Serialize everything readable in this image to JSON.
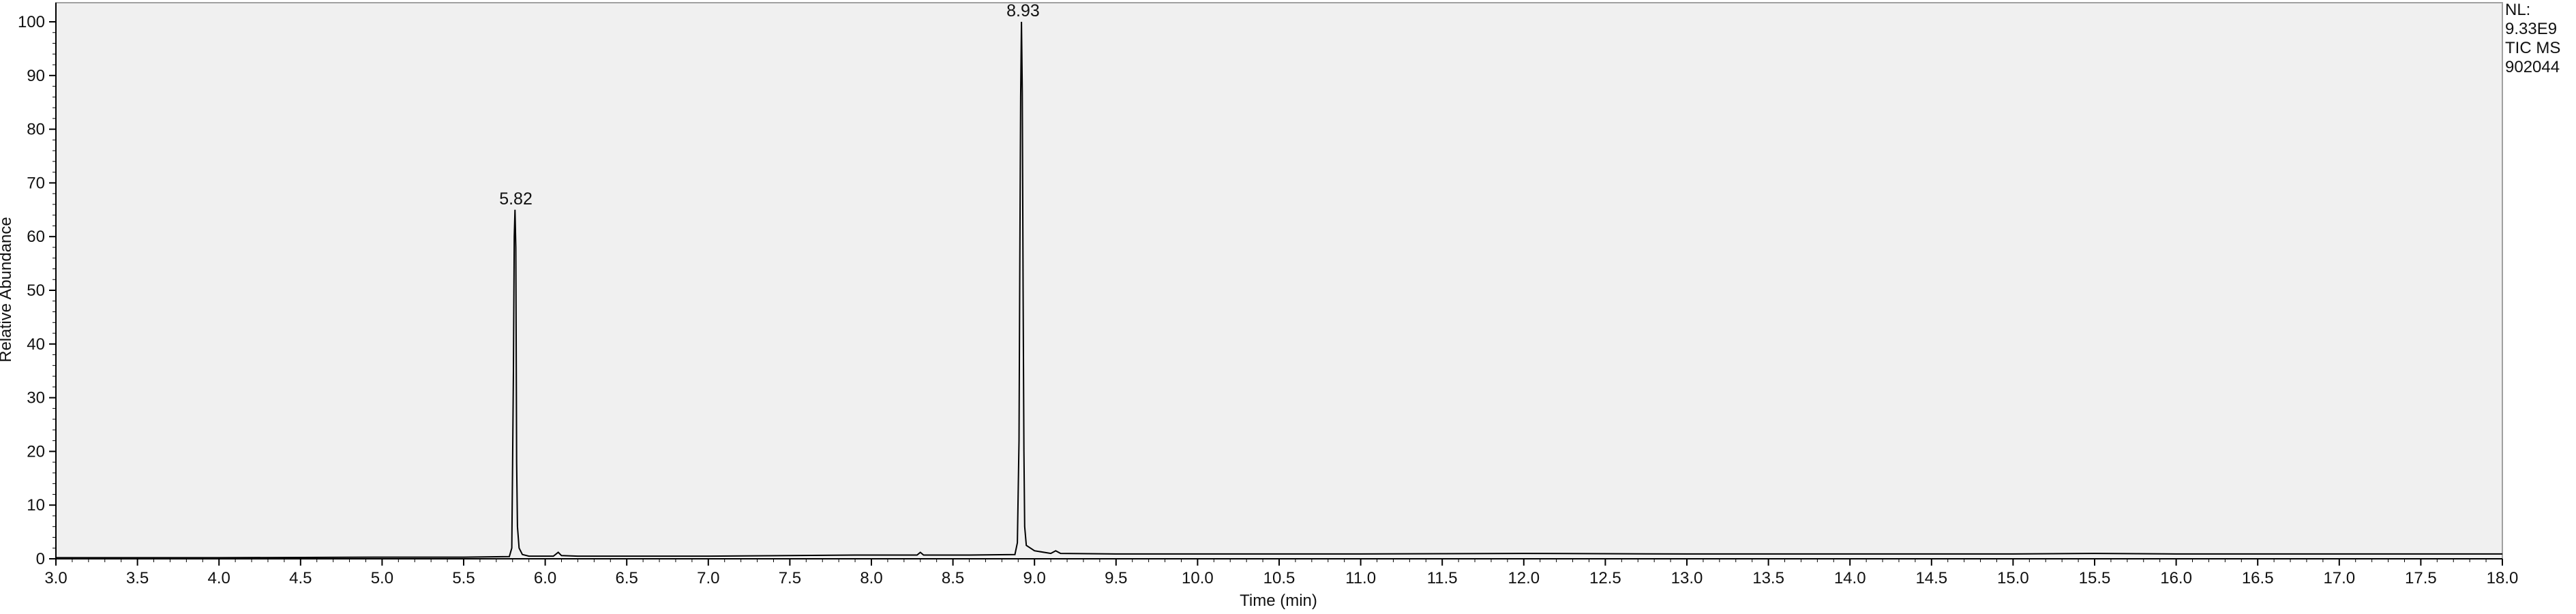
{
  "chart_data": {
    "type": "line",
    "title": "",
    "xlabel": "Time (min)",
    "ylabel": "Relative Abundance",
    "xlim": [
      3.0,
      18.0
    ],
    "ylim": [
      0,
      100
    ],
    "grid": false,
    "x_ticks": [
      "3.0",
      "3.5",
      "4.0",
      "4.5",
      "5.0",
      "5.5",
      "6.0",
      "6.5",
      "7.0",
      "7.5",
      "8.0",
      "8.5",
      "9.0",
      "9.5",
      "10.0",
      "10.5",
      "11.0",
      "11.5",
      "12.0",
      "12.5",
      "13.0",
      "13.5",
      "14.0",
      "14.5",
      "15.0",
      "15.5",
      "16.0",
      "16.5",
      "17.0",
      "17.5",
      "18.0"
    ],
    "y_ticks": [
      "0",
      "10",
      "20",
      "30",
      "40",
      "50",
      "60",
      "70",
      "80",
      "90",
      "100"
    ],
    "info": [
      "NL:",
      "9.33E9",
      "TIC  MS",
      "902044"
    ],
    "peak_labels": [
      {
        "x": 5.82,
        "y": 65,
        "text": "5.82"
      },
      {
        "x": 8.93,
        "y": 100,
        "text": "8.93"
      }
    ],
    "series": [
      {
        "values": [
          [
            3.0,
            0.2
          ],
          [
            4.0,
            0.2
          ],
          [
            4.95,
            0.3
          ],
          [
            5.5,
            0.3
          ],
          [
            5.78,
            0.4
          ],
          [
            5.795,
            2
          ],
          [
            5.8,
            18
          ],
          [
            5.805,
            35
          ],
          [
            5.81,
            60
          ],
          [
            5.815,
            65
          ],
          [
            5.82,
            58
          ],
          [
            5.825,
            18
          ],
          [
            5.83,
            6
          ],
          [
            5.84,
            2
          ],
          [
            5.86,
            0.8
          ],
          [
            5.9,
            0.5
          ],
          [
            6.05,
            0.5
          ],
          [
            6.08,
            1.2
          ],
          [
            6.1,
            0.6
          ],
          [
            6.2,
            0.5
          ],
          [
            7.0,
            0.5
          ],
          [
            7.5,
            0.6
          ],
          [
            7.9,
            0.7
          ],
          [
            8.28,
            0.7
          ],
          [
            8.3,
            1.2
          ],
          [
            8.32,
            0.7
          ],
          [
            8.6,
            0.7
          ],
          [
            8.88,
            0.8
          ],
          [
            8.895,
            3
          ],
          [
            8.905,
            22
          ],
          [
            8.91,
            56
          ],
          [
            8.915,
            86
          ],
          [
            8.92,
            100
          ],
          [
            8.925,
            87
          ],
          [
            8.93,
            50
          ],
          [
            8.935,
            20
          ],
          [
            8.94,
            6
          ],
          [
            8.95,
            2.5
          ],
          [
            9.0,
            1.5
          ],
          [
            9.1,
            1.0
          ],
          [
            9.13,
            1.5
          ],
          [
            9.16,
            1.0
          ],
          [
            9.5,
            0.9
          ],
          [
            10.0,
            0.9
          ],
          [
            11.0,
            0.9
          ],
          [
            12.0,
            1.0
          ],
          [
            13.0,
            0.9
          ],
          [
            14.0,
            0.9
          ],
          [
            15.0,
            0.9
          ],
          [
            15.5,
            1.0
          ],
          [
            16.0,
            0.9
          ],
          [
            17.0,
            0.9
          ],
          [
            18.0,
            0.9
          ]
        ]
      }
    ]
  }
}
